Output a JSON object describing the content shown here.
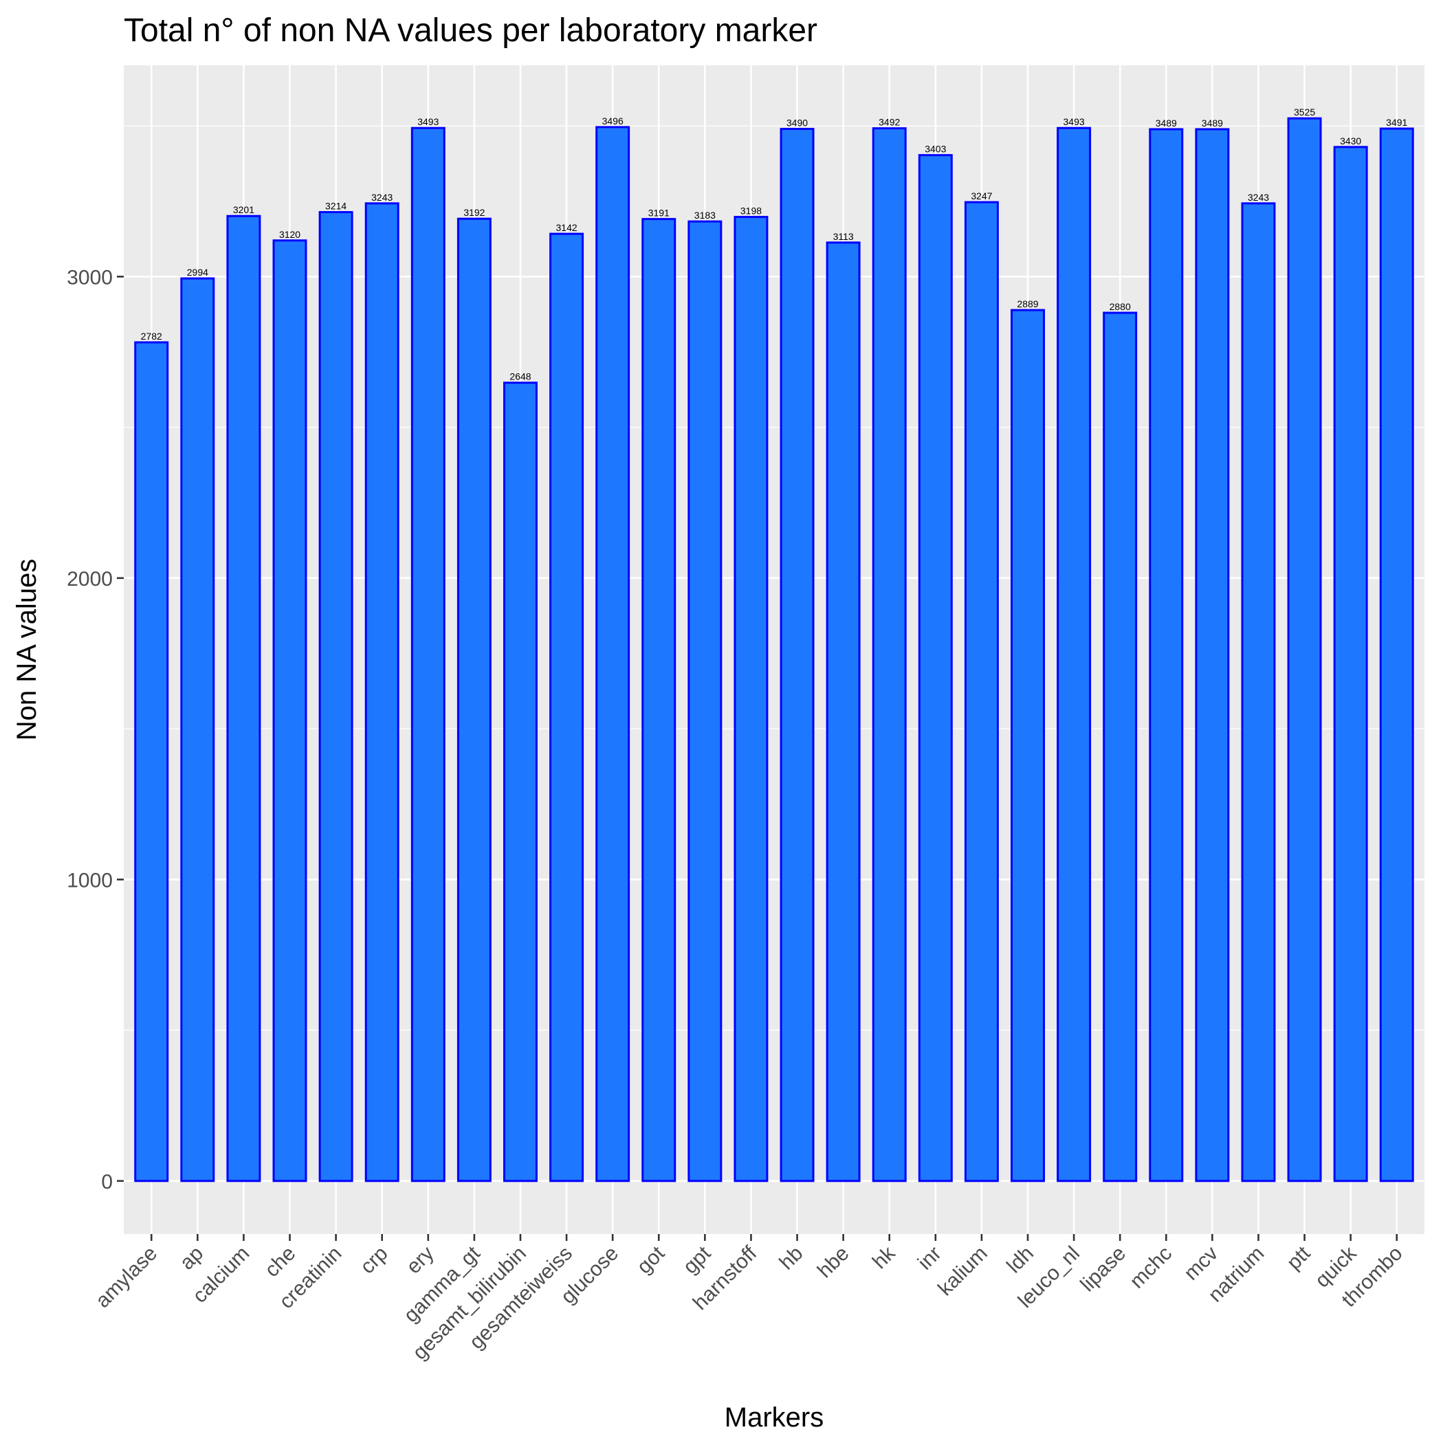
{
  "chart_data": {
    "type": "bar",
    "title": "Total n° of non NA values per laboratory marker",
    "xlabel": "Markers",
    "ylabel": "Non NA values",
    "categories": [
      "amylase",
      "ap",
      "calcium",
      "che",
      "creatinin",
      "crp",
      "ery",
      "gamma_gt",
      "gesamt_bilirubin",
      "gesamteiweiss",
      "glucose",
      "got",
      "gpt",
      "harnstoff",
      "hb",
      "hbe",
      "hk",
      "inr",
      "kalium",
      "ldh",
      "leuco_nl",
      "lipase",
      "mchc",
      "mcv",
      "natrium",
      "ptt",
      "quick",
      "thrombo"
    ],
    "values": [
      2782,
      2994,
      3201,
      3120,
      3214,
      3243,
      3493,
      3192,
      2648,
      3142,
      3496,
      3191,
      3183,
      3198,
      3490,
      3113,
      3492,
      3403,
      3247,
      2889,
      3493,
      2880,
      3489,
      3489,
      3243,
      3525,
      3430,
      3491
    ],
    "ylim": [
      -176,
      3701
    ],
    "y_ticks": [
      0,
      1000,
      2000,
      3000
    ],
    "grid": true,
    "legend": "none",
    "colors": {
      "bar_fill": "#1E78FF",
      "bar_outline": "#0000FF",
      "panel": "#EBEBEB",
      "grid": "#FFFFFF"
    }
  }
}
